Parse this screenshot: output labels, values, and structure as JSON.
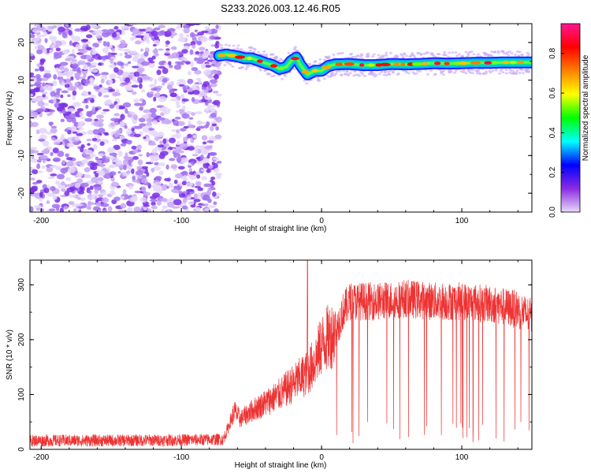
{
  "title": "S233.2026.003.12.46.R05",
  "chart_data": [
    {
      "type": "heatmap",
      "xlabel": "Height of straight line (km)",
      "ylabel": "Frequency (Hz)",
      "xlim": [
        -208,
        150
      ],
      "ylim": [
        -25,
        25
      ],
      "xticks": [
        -200,
        -100,
        0,
        100
      ],
      "yticks": [
        20,
        10,
        0,
        -10,
        -20
      ],
      "noise_region_x": [
        -208,
        -73
      ],
      "signal_track": {
        "x": [
          -73,
          -68,
          -60,
          -55,
          -50,
          -45,
          -40,
          -35,
          -30,
          -25,
          -22,
          -18,
          -15,
          -10,
          -5,
          0,
          5,
          10,
          20,
          30,
          40,
          50,
          60,
          70,
          80,
          90,
          100,
          110,
          120,
          130,
          140,
          150
        ],
        "freq": [
          16.5,
          16.8,
          16.3,
          15.8,
          15.8,
          15.2,
          14.5,
          14.0,
          13.0,
          13.5,
          15.0,
          16.0,
          14.0,
          11.5,
          12.5,
          12.5,
          13.8,
          14.2,
          14.3,
          14.0,
          14.0,
          14.3,
          14.2,
          14.3,
          14.5,
          14.4,
          14.5,
          14.6,
          14.6,
          14.7,
          14.7,
          14.7
        ]
      },
      "colorbar": {
        "label": "Normalized spectral amplitude",
        "ticks": [
          0.0,
          0.2,
          0.4,
          0.6,
          0.8
        ],
        "range": [
          0,
          0.95
        ],
        "stops": [
          "#e8d8f8",
          "#8a2be2",
          "#0000ff",
          "#00ffff",
          "#00ff00",
          "#ffff00",
          "#ff8000",
          "#ff0000",
          "#ff1493"
        ]
      },
      "grid": false
    },
    {
      "type": "line",
      "xlabel": "Height of straight line (km)",
      "ylabel": "SNR (10 * v/v)",
      "xlim": [
        -208,
        150
      ],
      "ylim": [
        0,
        345
      ],
      "xticks": [
        -200,
        -100,
        0,
        100
      ],
      "yticks": [
        0,
        100,
        200,
        300
      ],
      "line_color": "#ee3333",
      "series_profile": {
        "x": [
          -208,
          -150,
          -100,
          -70,
          -62,
          -58,
          -50,
          -40,
          -30,
          -20,
          -15,
          -10,
          -5,
          0,
          5,
          10,
          15,
          20,
          40,
          60,
          80,
          100,
          120,
          140,
          150
        ],
        "mean": [
          16,
          16,
          17,
          18,
          70,
          55,
          70,
          85,
          100,
          120,
          130,
          140,
          160,
          190,
          205,
          215,
          250,
          270,
          270,
          275,
          270,
          270,
          265,
          255,
          240
        ]
      },
      "spike": {
        "x": -10,
        "y": 345
      },
      "grid": false
    }
  ]
}
